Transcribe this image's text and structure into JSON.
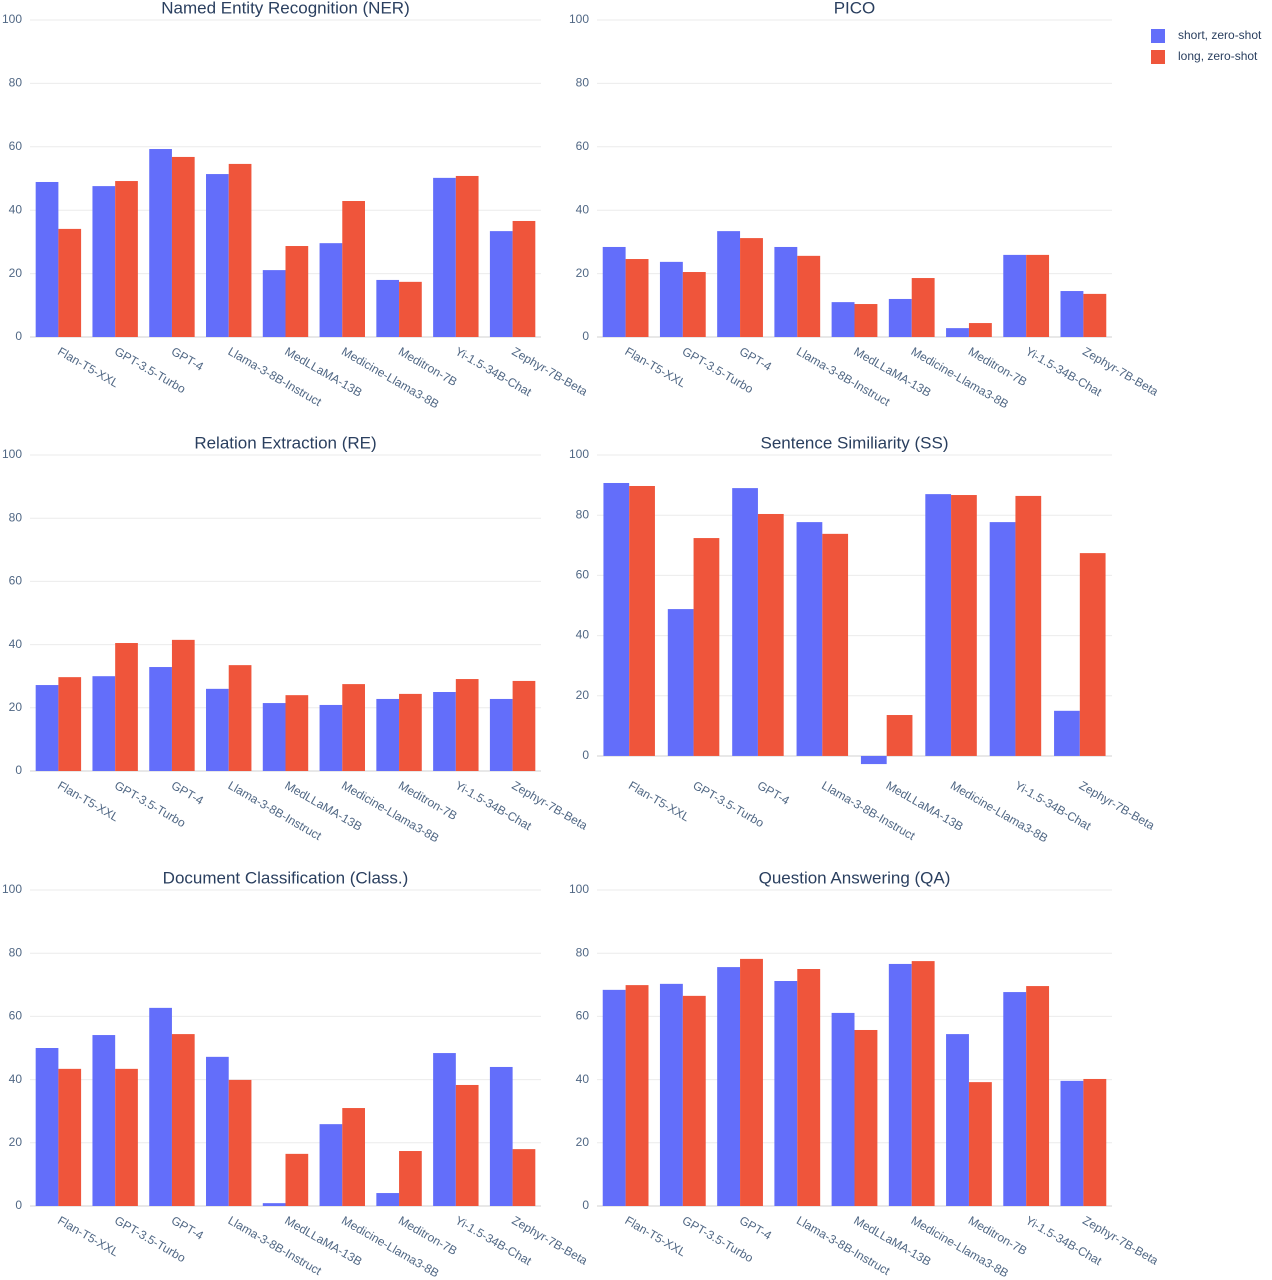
{
  "chart_data": [
    {
      "type": "bar",
      "title": "Named Entity Recognition (NER)",
      "categories": [
        "Flan-T5-XXL",
        "GPT-3.5-Turbo",
        "GPT-4",
        "Llama-3-8B-Instruct",
        "MedLLaMA-13B",
        "Medicine-Llama3-8B",
        "Meditron-7B",
        "Yi-1.5-34B-Chat",
        "Zephyr-7B-Beta"
      ],
      "series": [
        {
          "name": "short, zero-shot",
          "color": "#636efa",
          "values": [
            48.9,
            47.6,
            59.3,
            51.4,
            21.1,
            29.6,
            18.0,
            50.2,
            33.4
          ]
        },
        {
          "name": "long, zero-shot",
          "color": "#ef553b",
          "values": [
            34.1,
            49.2,
            56.8,
            54.6,
            28.7,
            42.9,
            17.4,
            50.8,
            36.6
          ]
        }
      ],
      "ylim": [
        0,
        100
      ],
      "yticks": [
        0,
        20,
        40,
        60,
        80,
        100
      ],
      "grid": true,
      "legend": "top-right"
    },
    {
      "type": "bar",
      "title": "PICO",
      "categories": [
        "Flan-T5-XXL",
        "GPT-3.5-Turbo",
        "GPT-4",
        "Llama-3-8B-Instruct",
        "MedLLaMA-13B",
        "Medicine-Llama3-8B",
        "Meditron-7B",
        "Yi-1.5-34B-Chat",
        "Zephyr-7B-Beta"
      ],
      "series": [
        {
          "name": "short, zero-shot",
          "color": "#636efa",
          "values": [
            28.4,
            23.7,
            33.4,
            28.4,
            11.0,
            12.0,
            2.8,
            25.9,
            14.5
          ]
        },
        {
          "name": "long, zero-shot",
          "color": "#ef553b",
          "values": [
            24.6,
            20.5,
            31.2,
            25.6,
            10.4,
            18.6,
            4.4,
            25.9,
            13.6
          ]
        }
      ],
      "ylim": [
        0,
        100
      ],
      "yticks": [
        0,
        20,
        40,
        60,
        80,
        100
      ],
      "grid": true
    },
    {
      "type": "bar",
      "title": "Relation Extraction (RE)",
      "categories": [
        "Flan-T5-XXL",
        "GPT-3.5-Turbo",
        "GPT-4",
        "Llama-3-8B-Instruct",
        "MedLLaMA-13B",
        "Medicine-Llama3-8B",
        "Meditron-7B",
        "Yi-1.5-34B-Chat",
        "Zephyr-7B-Beta"
      ],
      "series": [
        {
          "name": "short, zero-shot",
          "color": "#636efa",
          "values": [
            27.2,
            30.0,
            32.9,
            26.0,
            21.5,
            20.9,
            22.8,
            25.0,
            22.8
          ]
        },
        {
          "name": "long, zero-shot",
          "color": "#ef553b",
          "values": [
            29.7,
            40.5,
            41.5,
            33.5,
            24.0,
            27.5,
            24.4,
            29.1,
            28.5
          ]
        }
      ],
      "ylim": [
        0,
        100
      ],
      "yticks": [
        0,
        20,
        40,
        60,
        80,
        100
      ],
      "grid": true
    },
    {
      "type": "bar",
      "title": "Sentence Similiarity (SS)",
      "categories": [
        "Flan-T5-XXL",
        "GPT-3.5-Turbo",
        "GPT-4",
        "Llama-3-8B-Instruct",
        "MedLLaMA-13B",
        "Medicine-Llama3-8B",
        "Yi-1.5-34B-Chat",
        "Zephyr-7B-Beta"
      ],
      "series": [
        {
          "name": "short, zero-shot",
          "color": "#636efa",
          "values": [
            90.7,
            48.8,
            89.0,
            77.7,
            -2.7,
            87.0,
            77.7,
            15.0
          ]
        },
        {
          "name": "long, zero-shot",
          "color": "#ef553b",
          "values": [
            89.7,
            72.4,
            80.4,
            73.8,
            13.6,
            86.7,
            86.4,
            67.4
          ]
        }
      ],
      "ylim": [
        -5,
        100
      ],
      "yticks": [
        0,
        20,
        40,
        60,
        80,
        100
      ],
      "grid": true
    },
    {
      "type": "bar",
      "title": "Document Classification (Class.)",
      "categories": [
        "Flan-T5-XXL",
        "GPT-3.5-Turbo",
        "GPT-4",
        "Llama-3-8B-Instruct",
        "MedLLaMA-13B",
        "Medicine-Llama3-8B",
        "Meditron-7B",
        "Yi-1.5-34B-Chat",
        "Zephyr-7B-Beta"
      ],
      "series": [
        {
          "name": "short, zero-shot",
          "color": "#636efa",
          "values": [
            50.0,
            54.1,
            62.7,
            47.2,
            0.9,
            25.9,
            4.1,
            48.4,
            44.0
          ]
        },
        {
          "name": "long, zero-shot",
          "color": "#ef553b",
          "values": [
            43.4,
            43.4,
            54.4,
            39.9,
            16.5,
            31.0,
            17.4,
            38.3,
            18.0
          ]
        }
      ],
      "ylim": [
        0,
        100
      ],
      "yticks": [
        0,
        20,
        40,
        60,
        80,
        100
      ],
      "grid": true
    },
    {
      "type": "bar",
      "title": "Question Answering (QA)",
      "categories": [
        "Flan-T5-XXL",
        "GPT-3.5-Turbo",
        "GPT-4",
        "Llama-3-8B-Instruct",
        "MedLLaMA-13B",
        "Medicine-Llama3-8B",
        "Meditron-7B",
        "Yi-1.5-34B-Chat",
        "Zephyr-7B-Beta"
      ],
      "series": [
        {
          "name": "short, zero-shot",
          "color": "#636efa",
          "values": [
            68.4,
            70.3,
            75.6,
            71.2,
            61.1,
            76.6,
            54.4,
            67.7,
            39.6
          ]
        },
        {
          "name": "long, zero-shot",
          "color": "#ef553b",
          "values": [
            69.9,
            66.5,
            78.2,
            75.0,
            55.7,
            77.5,
            39.2,
            69.6,
            40.2
          ]
        }
      ],
      "ylim": [
        0,
        100
      ],
      "yticks": [
        0,
        20,
        40,
        60,
        80,
        100
      ],
      "grid": true
    }
  ]
}
